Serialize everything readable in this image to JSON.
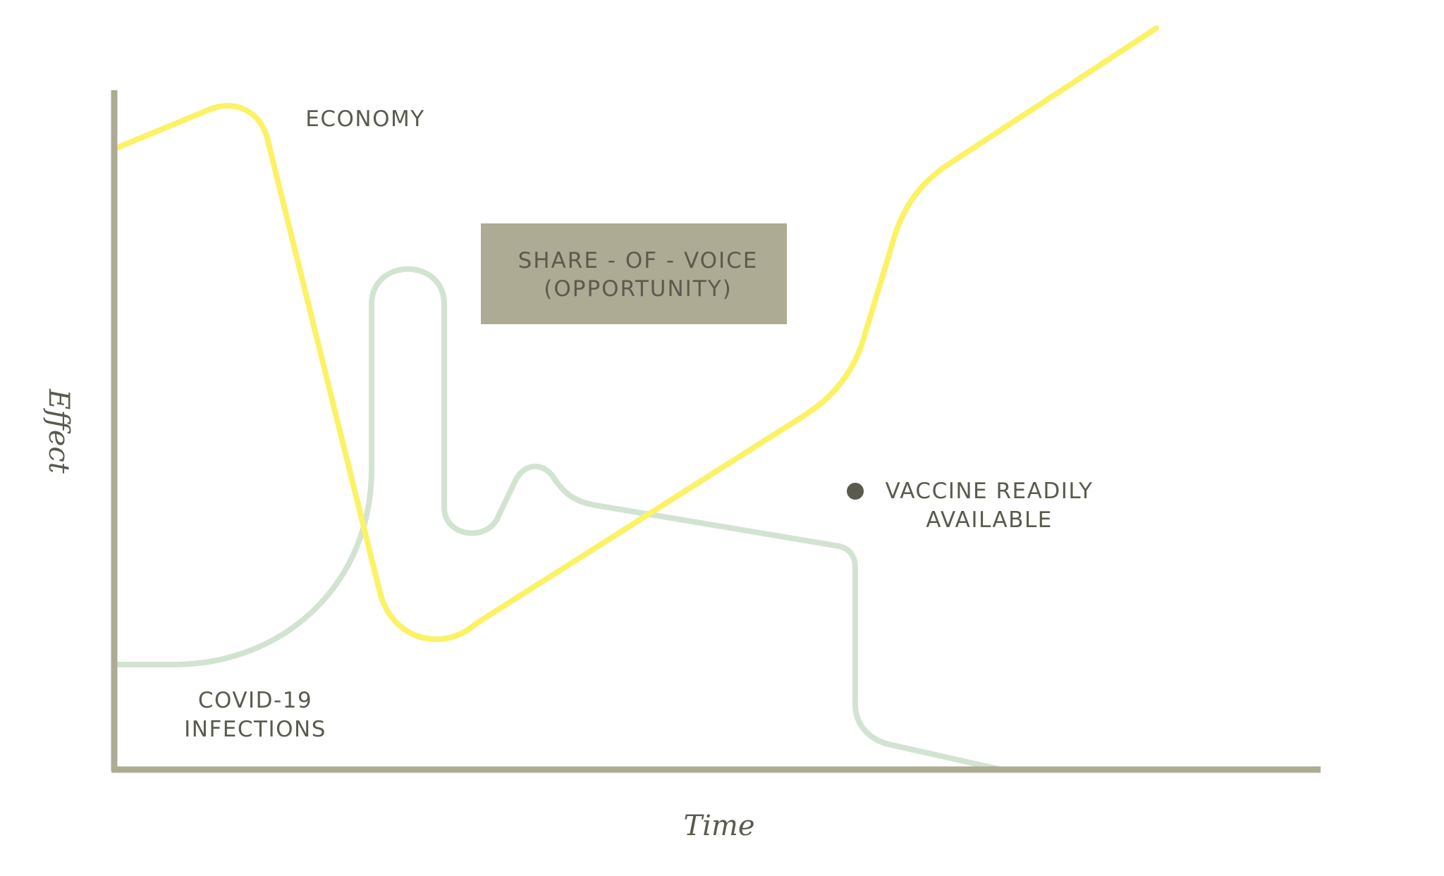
{
  "axes": {
    "x_label": "Time",
    "y_label": "Effect",
    "axis_color": "#aeab94"
  },
  "curves": {
    "economy": {
      "label": "ECONOMY",
      "color": "#fbf265"
    },
    "covid": {
      "label_line1": "COVID-19",
      "label_line2": "INFECTIONS",
      "color": "#d3e3d2"
    }
  },
  "opportunity_box": {
    "line1": "SHARE - OF - VOICE",
    "line2": "(OPPORTUNITY)",
    "fill": "#aeab94"
  },
  "milestone": {
    "line1": "VACCINE READILY",
    "line2": "AVAILABLE",
    "marker_color": "#5a5a4e"
  },
  "text_color": "#5a5a4e"
}
